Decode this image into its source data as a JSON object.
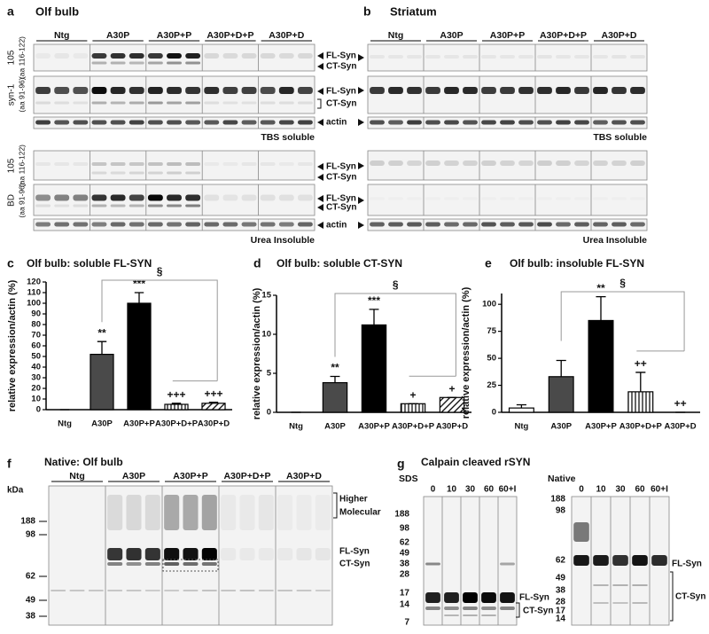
{
  "panel_a": {
    "letter": "a",
    "title": "Olf bulb",
    "groups": [
      "Ntg",
      "A30P",
      "A30P+P",
      "A30P+D+P",
      "A30P+D"
    ],
    "row_labels": [
      [
        "105",
        "(aa 116-122)"
      ],
      [
        "syn-1",
        "(aa 91-96)"
      ],
      [
        "105",
        "(aa 116-122)"
      ],
      [
        "BD",
        "(aa 91-96)"
      ]
    ],
    "band_labels": [
      "FL-Syn",
      "CT-Syn",
      "FL-Syn",
      "CT-Syn",
      "actin",
      "FL-Syn",
      "CT-Syn",
      "FL-Syn",
      "CT-Syn",
      "actin"
    ],
    "fractions": [
      "TBS soluble",
      "Urea Insoluble"
    ]
  },
  "panel_b": {
    "letter": "b",
    "title": "Striatum",
    "groups": [
      "Ntg",
      "A30P",
      "A30P+P",
      "A30P+D+P",
      "A30P+D"
    ],
    "fractions": [
      "TBS soluble",
      "Urea Insoluble"
    ]
  },
  "chart_data": [
    {
      "panel": "c",
      "type": "bar",
      "title": "Olf bulb: soluble FL-SYN",
      "y_label": "relative expression/actin (%)",
      "categories": [
        "Ntg",
        "A30P",
        "A30P+P",
        "A30P+D+P",
        "A30P+D"
      ],
      "values": [
        0,
        52,
        100,
        5,
        6
      ],
      "errors": [
        0,
        12,
        10,
        1,
        1
      ],
      "markers": [
        null,
        "**",
        "***",
        "+++",
        "+++"
      ],
      "bracket_label": "§",
      "fills": [
        "#ffffff",
        "#4a4a4a",
        "#000000",
        "vertical-stripes",
        "diagonal-stripes"
      ],
      "ylim": [
        0,
        120
      ],
      "yticks": [
        0,
        10,
        20,
        30,
        40,
        50,
        60,
        70,
        80,
        90,
        100,
        110,
        120
      ]
    },
    {
      "panel": "d",
      "type": "bar",
      "title": "Olf bulb: soluble CT-SYN",
      "y_label": "relative expression/actin (%)",
      "categories": [
        "Ntg",
        "A30P",
        "A30P+P",
        "A30P+D+P",
        "A30P+D"
      ],
      "values": [
        0,
        3.8,
        11.2,
        1.1,
        1.9
      ],
      "errors": [
        0,
        0.8,
        2.0,
        0,
        0
      ],
      "markers": [
        null,
        "**",
        "***",
        "+",
        "+"
      ],
      "bracket_label": "§",
      "fills": [
        "#ffffff",
        "#4a4a4a",
        "#000000",
        "vertical-stripes",
        "diagonal-stripes"
      ],
      "ylim": [
        0,
        15
      ],
      "yticks": [
        0,
        5,
        10,
        15
      ]
    },
    {
      "panel": "e",
      "type": "bar",
      "title": "Olf bulb: insoluble FL-SYN",
      "y_label": "relative expression/actin (%)",
      "categories": [
        "Ntg",
        "A30P",
        "A30P+P",
        "A30P+D+P",
        "A30P+D"
      ],
      "values": [
        4,
        33,
        85,
        19,
        0
      ],
      "errors": [
        3,
        15,
        22,
        18,
        0
      ],
      "markers": [
        null,
        null,
        "**",
        "++",
        "++"
      ],
      "bracket_label": "§",
      "fills": [
        "#ffffff",
        "#4a4a4a",
        "#000000",
        "vertical-stripes",
        "diagonal-stripes"
      ],
      "ylim": [
        0,
        110
      ],
      "yticks": [
        0,
        25,
        50,
        75,
        100
      ]
    }
  ],
  "panel_f": {
    "letter": "f",
    "title": "Native: Olf bulb",
    "groups": [
      "Ntg",
      "A30P",
      "A30P+P",
      "A30P+D+P",
      "A30P+D"
    ],
    "kda_label": "kDa",
    "markers": [
      188,
      98,
      62,
      49,
      38
    ],
    "band_labels": [
      "Higher",
      "Molecular",
      "FL-Syn",
      "CT-Syn"
    ]
  },
  "panel_g": {
    "letter": "g",
    "title": "Calpain cleaved rSYN",
    "blots": [
      {
        "condition": "SDS",
        "lanes": [
          "0",
          "10",
          "30",
          "60",
          "60+I"
        ],
        "markers": [
          188,
          98,
          62,
          49,
          38,
          28,
          17,
          14,
          7
        ],
        "band_labels": [
          "FL-Syn",
          "CT-Syn"
        ]
      },
      {
        "condition": "Native",
        "lanes": [
          "0",
          "10",
          "30",
          "60",
          "60+I"
        ],
        "markers": [
          188,
          98,
          62,
          49,
          38,
          28,
          17,
          14
        ],
        "band_labels": [
          "FL-Syn",
          "CT-Syn"
        ]
      }
    ]
  }
}
